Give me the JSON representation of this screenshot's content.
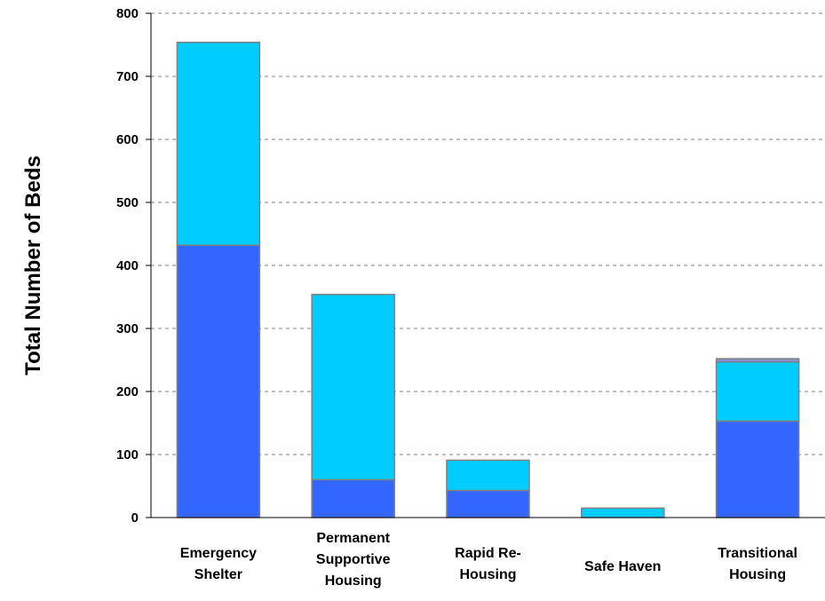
{
  "chart_data": {
    "type": "bar",
    "stacked": true,
    "title": "",
    "xlabel": "",
    "ylabel": "Total Number of Beds",
    "ylim": [
      0,
      800
    ],
    "yticks": [
      0,
      100,
      200,
      300,
      400,
      500,
      600,
      700,
      800
    ],
    "grid": "horizontal dashed",
    "categories": [
      [
        "Emergency",
        "Shelter"
      ],
      [
        "Permanent",
        "Supportive",
        "Housing"
      ],
      [
        "Rapid Re-",
        "Housing"
      ],
      [
        "Safe Haven"
      ],
      [
        "Transitional",
        "Housing"
      ]
    ],
    "series": [
      {
        "values": [
          432,
          60,
          43,
          0,
          153
        ],
        "color": "#3366FF"
      },
      {
        "values": [
          322,
          294,
          48,
          15,
          94
        ],
        "color": "#00CCFF"
      },
      {
        "values": [
          0,
          0,
          0,
          0,
          5
        ],
        "color": "#8A8FD8"
      }
    ]
  }
}
